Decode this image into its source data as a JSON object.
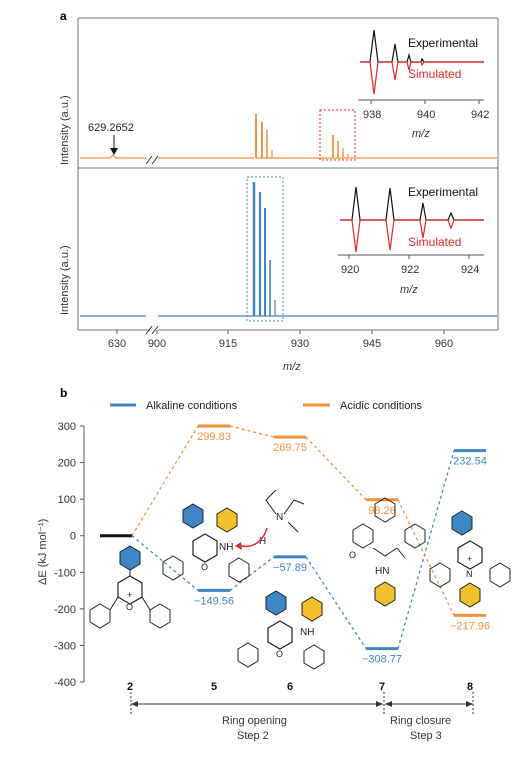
{
  "colors": {
    "orange": "#f0923a",
    "blue": "#3f86c6",
    "red": "#e0282b",
    "black": "#111111",
    "gray": "#8a8a8a"
  },
  "panel_a": {
    "label": "a",
    "peak_label": "629.2652",
    "ylabel": "Intensity (a.u.)",
    "xlabel": "m/z",
    "inset_top": {
      "legend_exp": "Experimental",
      "legend_sim": "Simulated",
      "ticks": [
        "938",
        "940",
        "942"
      ],
      "xlabel": "m/z"
    },
    "inset_bottom": {
      "legend_exp": "Experimental",
      "legend_sim": "Simulated",
      "ticks": [
        "920",
        "922",
        "924"
      ],
      "xlabel": "m/z"
    }
  },
  "panel_b": {
    "label": "b",
    "legend_alk": "Alkaline conditions",
    "legend_acid": "Acidic conditions",
    "ylabel": "ΔE (kJ mol⁻¹)",
    "annotations": {
      "ring_opening": "Ring opening",
      "step2": "Step 2",
      "ring_closure": "Ring closure",
      "step3": "Step 3"
    },
    "mol_labels": {
      "nh": "NH",
      "h": "H",
      "n": "N",
      "hn": "HN",
      "o": "O",
      "plus": "+",
      "nh2": "NH"
    }
  },
  "chart_data": [
    {
      "type": "line",
      "title": "",
      "panel": "a (top, orange spectrum)",
      "xlabel": "m/z",
      "ylabel": "Intensity (a.u.)",
      "xticks": [
        "630",
        "900",
        "915",
        "930",
        "945",
        "960"
      ],
      "series": [
        {
          "peaks_mz": [
            629.2652,
            920.5,
            921,
            921.5,
            922,
            931,
            932,
            933
          ],
          "rel_intensity": [
            0.02,
            0.45,
            0.37,
            0.3,
            0.1,
            0.2,
            0.14,
            0.07
          ]
        }
      ]
    },
    {
      "type": "line",
      "title": "",
      "panel": "a (bottom, blue spectrum)",
      "xlabel": "m/z",
      "ylabel": "Intensity (a.u.)",
      "xticks": [
        "630",
        "900",
        "915",
        "930",
        "945",
        "960"
      ],
      "series": [
        {
          "peaks_mz": [
            920,
            920.7,
            921.4,
            922.1,
            922.8
          ],
          "rel_intensity": [
            1.0,
            0.92,
            0.78,
            0.5,
            0.15
          ]
        }
      ]
    },
    {
      "type": "line",
      "panel": "b",
      "ylabel": "ΔE (kJ mol⁻¹)",
      "ylim": [
        -400,
        300
      ],
      "yticks": [
        "300",
        "200",
        "100",
        "0",
        "-100",
        "-200",
        "-300",
        "-400"
      ],
      "categories": [
        "2",
        "5",
        "6",
        "7",
        "8"
      ],
      "series": [
        {
          "name": "Alkaline conditions",
          "values": [
            0,
            -149.56,
            -57.89,
            -308.77,
            232.54
          ],
          "labels": [
            "",
            "−149.56",
            "−57.89",
            "−308.77",
            "232.54"
          ]
        },
        {
          "name": "Acidic conditions",
          "values": [
            0,
            299.83,
            269.75,
            98.26,
            -217.96
          ],
          "labels": [
            "",
            "299.83",
            "269.75",
            "98.26",
            "−217.96"
          ]
        }
      ]
    }
  ]
}
